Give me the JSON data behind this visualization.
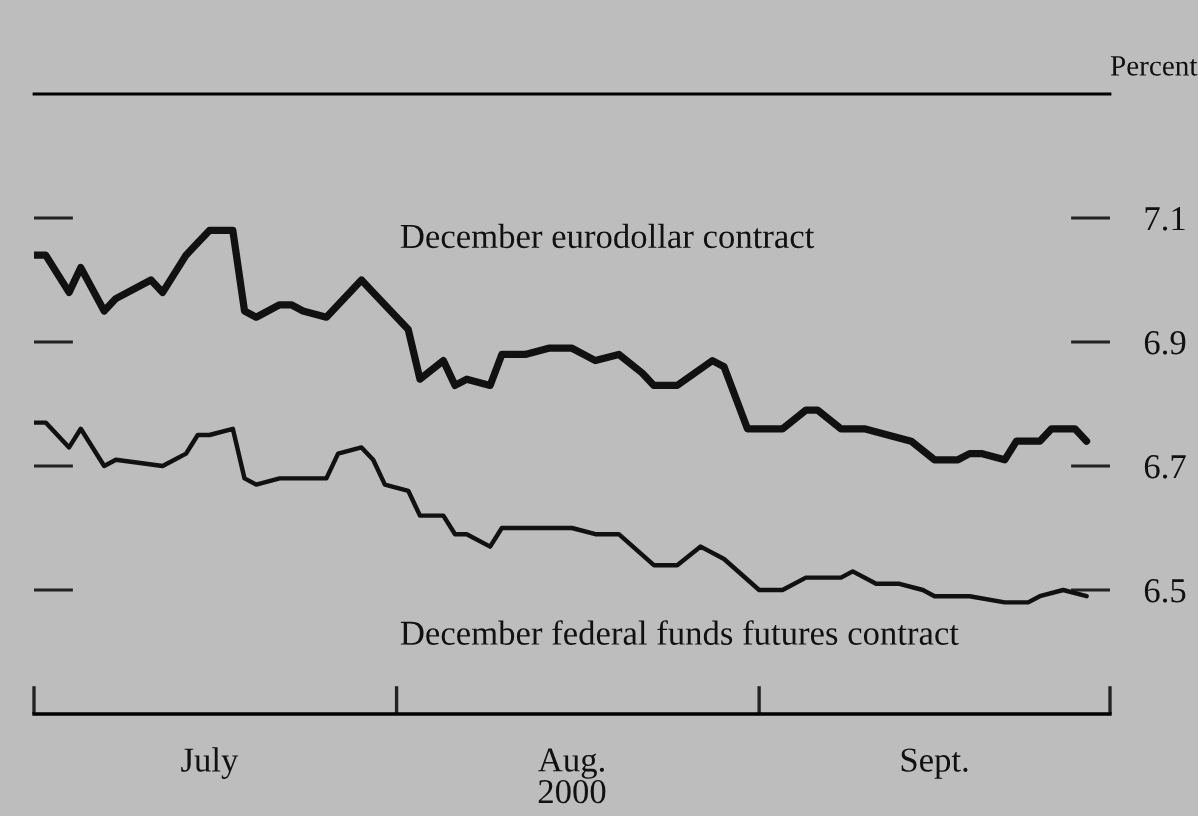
{
  "chart_data": {
    "type": "line",
    "ylabel": "Percent",
    "xlabel": "2000",
    "xlim": [
      "2000-07-01",
      "2000-10-01"
    ],
    "xticks": [
      {
        "value": "2000-07-01",
        "label": null
      },
      {
        "value": "2000-07-16",
        "label": "July"
      },
      {
        "value": "2000-08-01",
        "label": null
      },
      {
        "value": "2000-08-16",
        "label": "Aug."
      },
      {
        "value": "2000-09-01",
        "label": null
      },
      {
        "value": "2000-09-16",
        "label": "Sept."
      },
      {
        "value": "2000-10-01",
        "label": null
      }
    ],
    "ylim": [
      6.3,
      7.3
    ],
    "yticks": [
      6.5,
      6.7,
      6.9,
      7.1
    ],
    "grid": false,
    "legend": false,
    "marker": "none",
    "line_style": "solid",
    "series": [
      {
        "name": "December eurodollar contract",
        "color": "#111111",
        "x": [
          "2000-07-01",
          "2000-07-02",
          "2000-07-04",
          "2000-07-05",
          "2000-07-07",
          "2000-07-08",
          "2000-07-11",
          "2000-07-12",
          "2000-07-14",
          "2000-07-15",
          "2000-07-16",
          "2000-07-18",
          "2000-07-19",
          "2000-07-20",
          "2000-07-22",
          "2000-07-23",
          "2000-07-24",
          "2000-07-26",
          "2000-07-29",
          "2000-07-30",
          "2000-08-02",
          "2000-08-03",
          "2000-08-05",
          "2000-08-06",
          "2000-08-07",
          "2000-08-09",
          "2000-08-10",
          "2000-08-12",
          "2000-08-14",
          "2000-08-16",
          "2000-08-18",
          "2000-08-20",
          "2000-08-22",
          "2000-08-23",
          "2000-08-25",
          "2000-08-28",
          "2000-08-29",
          "2000-08-31",
          "2000-09-03",
          "2000-09-05",
          "2000-09-06",
          "2000-09-08",
          "2000-09-10",
          "2000-09-12",
          "2000-09-14",
          "2000-09-16",
          "2000-09-18",
          "2000-09-19",
          "2000-09-20",
          "2000-09-22",
          "2000-09-23",
          "2000-09-25",
          "2000-09-26",
          "2000-09-28",
          "2000-09-29"
        ],
        "values": [
          7.04,
          7.04,
          6.98,
          7.02,
          6.95,
          6.97,
          7.0,
          6.98,
          7.04,
          7.06,
          7.08,
          7.08,
          6.95,
          6.94,
          6.96,
          6.96,
          6.95,
          6.94,
          7.0,
          6.98,
          6.92,
          6.84,
          6.87,
          6.83,
          6.84,
          6.83,
          6.88,
          6.88,
          6.89,
          6.89,
          6.87,
          6.88,
          6.85,
          6.83,
          6.83,
          6.87,
          6.86,
          6.76,
          6.76,
          6.79,
          6.79,
          6.76,
          6.76,
          6.75,
          6.74,
          6.71,
          6.71,
          6.72,
          6.72,
          6.71,
          6.74,
          6.74,
          6.76,
          6.76,
          6.74
        ]
      },
      {
        "name": "December federal funds futures contract",
        "color": "#111111",
        "x": [
          "2000-07-01",
          "2000-07-02",
          "2000-07-04",
          "2000-07-05",
          "2000-07-07",
          "2000-07-08",
          "2000-07-12",
          "2000-07-14",
          "2000-07-15",
          "2000-07-16",
          "2000-07-18",
          "2000-07-19",
          "2000-07-20",
          "2000-07-22",
          "2000-07-24",
          "2000-07-26",
          "2000-07-27",
          "2000-07-29",
          "2000-07-30",
          "2000-07-31",
          "2000-08-02",
          "2000-08-03",
          "2000-08-05",
          "2000-08-06",
          "2000-08-07",
          "2000-08-09",
          "2000-08-10",
          "2000-08-12",
          "2000-08-16",
          "2000-08-18",
          "2000-08-20",
          "2000-08-23",
          "2000-08-25",
          "2000-08-27",
          "2000-08-29",
          "2000-09-01",
          "2000-09-03",
          "2000-09-05",
          "2000-09-08",
          "2000-09-09",
          "2000-09-11",
          "2000-09-13",
          "2000-09-15",
          "2000-09-16",
          "2000-09-17",
          "2000-09-19",
          "2000-09-22",
          "2000-09-24",
          "2000-09-25",
          "2000-09-27",
          "2000-09-29"
        ],
        "values": [
          6.77,
          6.77,
          6.73,
          6.76,
          6.7,
          6.71,
          6.7,
          6.72,
          6.75,
          6.75,
          6.76,
          6.68,
          6.67,
          6.68,
          6.68,
          6.68,
          6.72,
          6.73,
          6.71,
          6.67,
          6.66,
          6.62,
          6.62,
          6.59,
          6.59,
          6.57,
          6.6,
          6.6,
          6.6,
          6.59,
          6.59,
          6.54,
          6.54,
          6.57,
          6.55,
          6.5,
          6.5,
          6.52,
          6.52,
          6.53,
          6.51,
          6.51,
          6.5,
          6.49,
          6.49,
          6.49,
          6.48,
          6.48,
          6.49,
          6.5,
          6.49
        ]
      }
    ]
  }
}
